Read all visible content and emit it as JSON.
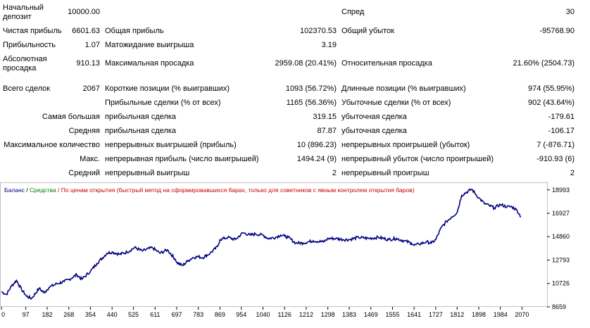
{
  "colors": {
    "balance": "#000080",
    "equity_label": "#008000",
    "note_label": "#cc0000",
    "frame": "#c0c0c0"
  },
  "report": {
    "r1": {
      "c1": "Начальный\nдепозит",
      "v1": "10000.00",
      "c3": "Спред",
      "v3": "30"
    },
    "r2": {
      "c1": "Чистая прибыль",
      "v1": "6601.63",
      "c2": "Общая прибыль",
      "v2": "102370.53",
      "c3": "Общий убыток",
      "v3": "-95768.90"
    },
    "r3": {
      "c1": "Прибыльность",
      "v1": "1.07",
      "c2": "Матожидание выигрыша",
      "v2": "3.19"
    },
    "r4": {
      "c1": "Абсолютная\nпросадка",
      "v1": "910.13",
      "c2": "Максимальная просадка",
      "v2": "2959.08 (20.41%)",
      "c3": "Относительная просадка",
      "v3": "21.60% (2504.73)"
    },
    "r5": {
      "c1": "Всего сделок",
      "v1": "2067",
      "c2": "Короткие позиции (% выигравших)",
      "v2": "1093 (56.72%)",
      "c3": "Длинные позиции (% выигравших)",
      "v3": "974 (55.95%)"
    },
    "r6": {
      "c2": "Прибыльные сделки (% от всех)",
      "v2": "1165 (56.36%)",
      "c3": "Убыточные сделки (% от всех)",
      "v3": "902 (43.64%)"
    },
    "r7": {
      "c1": "Самая большая",
      "c2": "прибыльная сделка",
      "v2": "319.15",
      "c3": "убыточная сделка",
      "v3": "-179.61"
    },
    "r8": {
      "c1": "Средняя",
      "c2": "прибыльная сделка",
      "v2": "87.87",
      "c3": "убыточная сделка",
      "v3": "-106.17"
    },
    "r9": {
      "c1": "Максимальное количество",
      "c2": "непрерывных выигрышей (прибыль)",
      "v2": "10 (896.23)",
      "c3": "непрерывных проигрышей (убыток)",
      "v3": "7 (-876.71)"
    },
    "r10": {
      "c1": "Макс.",
      "c2": "непрерывная прибыль (число выигрышей)",
      "v2": "1494.24 (9)",
      "c3": "непрерывный убыток (число проигрышей)",
      "v3": "-910.93 (6)"
    },
    "r11": {
      "c1": "Средний",
      "c2": "непрерывный выигрыш",
      "v2": "2",
      "c3": "непрерывный проигрыш",
      "v3": "2"
    }
  },
  "chart_data": {
    "type": "line",
    "legend": {
      "balance": "Баланс",
      "separator": " / ",
      "equity": "Средства",
      "note": " / По ценам открытия (быстрый метод на сформировавшихся барах, только для советников с явным контролем открытия баров)"
    },
    "xlim": [
      0,
      2150
    ],
    "ylim": [
      8659,
      19600
    ],
    "x_ticks": [
      "0",
      "97",
      "182",
      "268",
      "354",
      "440",
      "525",
      "611",
      "697",
      "783",
      "869",
      "954",
      "1040",
      "1126",
      "1212",
      "1298",
      "1383",
      "1469",
      "1555",
      "1641",
      "1727",
      "1812",
      "1898",
      "1984",
      "2070"
    ],
    "y_ticks": [
      "18993",
      "16927",
      "14860",
      "12793",
      "10726",
      "8659"
    ],
    "series": [
      {
        "x": [
          0,
          20,
          40,
          60,
          80,
          100,
          120,
          150,
          170,
          190,
          220,
          250,
          270,
          300,
          320,
          354,
          380,
          420,
          440,
          470,
          500,
          530,
          560,
          600,
          630,
          660,
          690,
          697,
          720,
          740,
          760,
          783,
          800,
          830,
          860,
          869,
          900,
          930,
          960,
          990,
          1010,
          1040,
          1060,
          1090,
          1110,
          1126,
          1140,
          1170,
          1200,
          1240,
          1280,
          1300,
          1330,
          1360,
          1383,
          1420,
          1460,
          1500,
          1540,
          1570,
          1600,
          1630,
          1641,
          1660,
          1690,
          1710,
          1727,
          1750,
          1770,
          1790,
          1812,
          1830,
          1850,
          1870,
          1898,
          1920,
          1940,
          1960,
          1984,
          2010,
          2030,
          2050,
          2066
        ],
        "y": [
          10000,
          9750,
          10500,
          11000,
          10200,
          9600,
          9400,
          10300,
          9900,
          10400,
          10700,
          10900,
          11100,
          11500,
          11100,
          11800,
          12500,
          13400,
          13500,
          13300,
          13500,
          13900,
          13600,
          13900,
          13400,
          13700,
          12900,
          12600,
          12300,
          12700,
          13000,
          13100,
          13000,
          13400,
          14000,
          14600,
          14800,
          14600,
          15200,
          15000,
          15100,
          15000,
          14700,
          14800,
          15000,
          14900,
          14800,
          14300,
          14300,
          14500,
          14400,
          14700,
          14700,
          14600,
          14600,
          14800,
          14700,
          14800,
          14600,
          14700,
          14500,
          14300,
          14100,
          14200,
          14400,
          14300,
          14600,
          15700,
          16200,
          16600,
          17000,
          18500,
          18800,
          19050,
          18300,
          17800,
          17600,
          17400,
          17700,
          17500,
          17500,
          17200,
          16600
        ]
      }
    ]
  }
}
